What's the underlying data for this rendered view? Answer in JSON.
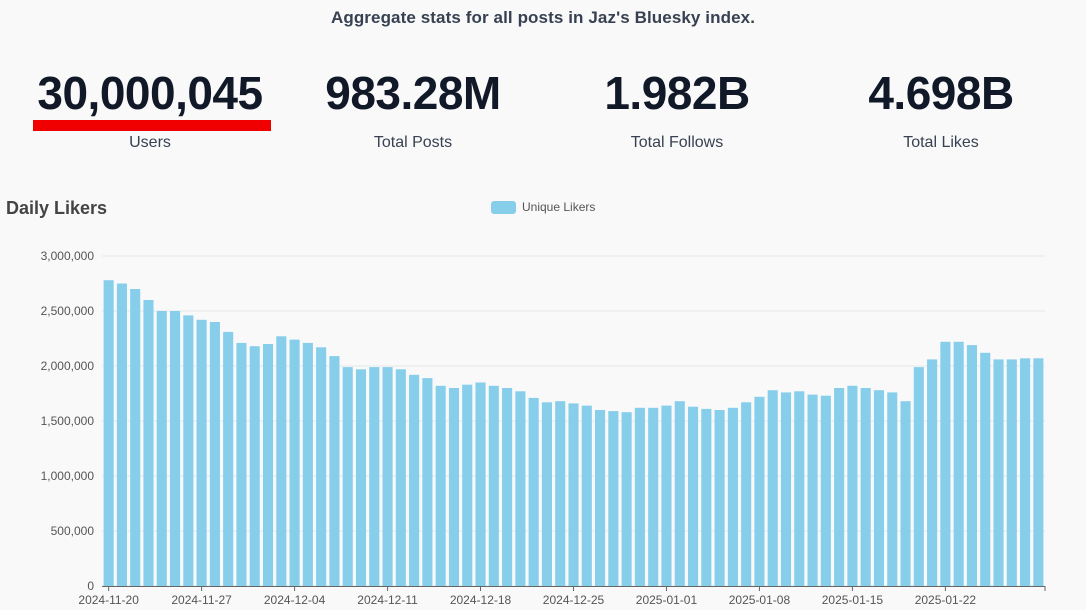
{
  "header": {
    "subtitle": "Aggregate stats for all posts in Jaz's Bluesky index."
  },
  "stats": [
    {
      "value": "30,000,045",
      "label": "Users"
    },
    {
      "value": "983.28M",
      "label": "Total Posts"
    },
    {
      "value": "1.982B",
      "label": "Total Follows"
    },
    {
      "value": "4.698B",
      "label": "Total Likes"
    }
  ],
  "colors": {
    "bar": "#87ceeb",
    "highlight_underline": "#f00000"
  },
  "chart_data": {
    "type": "bar",
    "title": "Daily Likers",
    "legend": [
      "Unique Likers"
    ],
    "legend_position": "top-center",
    "ylim": [
      0,
      3000000
    ],
    "yticks": [
      0,
      500000,
      1000000,
      1500000,
      2000000,
      2500000,
      3000000
    ],
    "ytick_labels": [
      "0",
      "500,000",
      "1,000,000",
      "1,500,000",
      "2,000,000",
      "2,500,000",
      "3,000,000"
    ],
    "xtick_labels": [
      "2024-11-20",
      "2024-11-27",
      "2024-12-04",
      "2024-12-11",
      "2024-12-18",
      "2024-12-25",
      "2025-01-01",
      "2025-01-08",
      "2025-01-15",
      "2025-01-22"
    ],
    "start_date": "2024-11-20",
    "series": [
      {
        "name": "Unique Likers",
        "values": [
          2780000,
          2750000,
          2700000,
          2600000,
          2500000,
          2500000,
          2460000,
          2420000,
          2400000,
          2310000,
          2210000,
          2180000,
          2200000,
          2270000,
          2240000,
          2210000,
          2170000,
          2090000,
          1990000,
          1970000,
          1990000,
          1990000,
          1970000,
          1920000,
          1890000,
          1820000,
          1800000,
          1830000,
          1850000,
          1820000,
          1800000,
          1770000,
          1710000,
          1670000,
          1680000,
          1660000,
          1640000,
          1600000,
          1590000,
          1580000,
          1620000,
          1620000,
          1640000,
          1680000,
          1630000,
          1610000,
          1600000,
          1620000,
          1670000,
          1720000,
          1780000,
          1760000,
          1770000,
          1740000,
          1730000,
          1800000,
          1820000,
          1800000,
          1780000,
          1760000,
          1680000,
          1990000,
          2060000,
          2220000,
          2220000,
          2190000,
          2120000,
          2060000,
          2060000,
          2070000,
          2070000
        ]
      }
    ]
  }
}
